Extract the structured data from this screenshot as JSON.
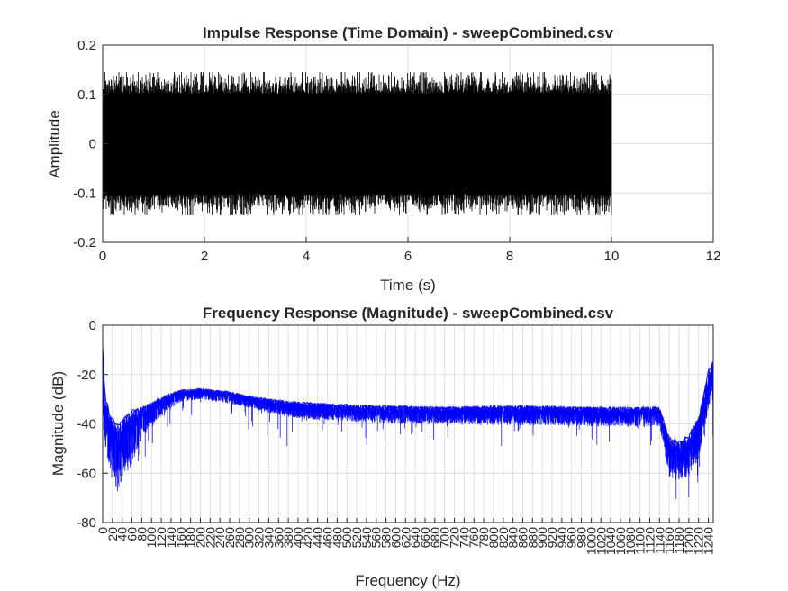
{
  "chart_data": [
    {
      "type": "line",
      "title": "Impulse Response (Time Domain) - sweepCombined.csv",
      "xlabel": "Time (s)",
      "ylabel": "Amplitude",
      "xlim": [
        0,
        12
      ],
      "ylim": [
        -0.2,
        0.2
      ],
      "xticks": [
        0,
        2,
        4,
        6,
        8,
        10,
        12
      ],
      "yticks": [
        -0.2,
        -0.1,
        0,
        0.1,
        0.2
      ],
      "xtick_labels": [
        "0",
        "2",
        "4",
        "6",
        "8",
        "10",
        "12"
      ],
      "ytick_labels": [
        "-0.2",
        "-0.1",
        "0",
        "0.1",
        "0.2"
      ],
      "grid": true,
      "series_color": "#000000",
      "signal": {
        "x_start": 0,
        "x_end": 10,
        "core_amplitude": 0.095,
        "peak_amplitude_typical": 0.12,
        "peak_amplitude_max": 0.145
      }
    },
    {
      "type": "line",
      "title": "Frequency Response (Magnitude) - sweepCombined.csv",
      "xlabel": "Frequency (Hz)",
      "ylabel": "Magnitude (dB)",
      "xlim": [
        0,
        1250
      ],
      "ylim": [
        -80,
        0
      ],
      "yticks": [
        -80,
        -60,
        -40,
        -20,
        0
      ],
      "ytick_labels": [
        "-80",
        "-60",
        "-40",
        "-20",
        "0"
      ],
      "xtick_step": 20,
      "xticks": [
        0,
        20,
        40,
        60,
        80,
        100,
        120,
        140,
        160,
        180,
        200,
        220,
        240,
        260,
        280,
        300,
        320,
        340,
        360,
        380,
        400,
        420,
        440,
        460,
        480,
        500,
        520,
        540,
        560,
        580,
        600,
        620,
        640,
        660,
        680,
        700,
        720,
        740,
        760,
        780,
        800,
        820,
        840,
        860,
        880,
        900,
        920,
        940,
        960,
        980,
        1000,
        1020,
        1040,
        1060,
        1080,
        1100,
        1120,
        1140,
        1160,
        1180,
        1200,
        1220,
        1240
      ],
      "xtick_labels": [
        "0",
        "20",
        "40",
        "60",
        "80",
        "100",
        "120",
        "140",
        "160",
        "180",
        "200",
        "220",
        "240",
        "260",
        "280",
        "300",
        "320",
        "340",
        "360",
        "380",
        "400",
        "420",
        "440",
        "460",
        "480",
        "500",
        "520",
        "540",
        "560",
        "580",
        "600",
        "620",
        "640",
        "660",
        "680",
        "700",
        "720",
        "740",
        "760",
        "780",
        "800",
        "820",
        "840",
        "860",
        "880",
        "900",
        "920",
        "940",
        "960",
        "980",
        "1000",
        "1020",
        "1040",
        "1060",
        "1080",
        "1100",
        "1120",
        "1140",
        "1160",
        "1180",
        "1200",
        "1220",
        "1240"
      ],
      "grid": true,
      "series_color": "#0000ff",
      "envelope": {
        "freq": [
          0,
          5,
          15,
          30,
          45,
          60,
          80,
          100,
          130,
          160,
          200,
          250,
          300,
          350,
          400,
          500,
          600,
          700,
          800,
          900,
          1000,
          1100,
          1140,
          1160,
          1180,
          1200,
          1220,
          1240,
          1250
        ],
        "upper_db": [
          -8,
          -28,
          -36,
          -40,
          -37,
          -34,
          -33,
          -31,
          -28,
          -26,
          -25.5,
          -26.5,
          -28.5,
          -30,
          -31,
          -32,
          -32.5,
          -33,
          -32.5,
          -32.5,
          -33,
          -33,
          -33,
          -45,
          -47,
          -44,
          -37,
          -18,
          -14
        ],
        "lower_db": [
          -40,
          -50,
          -58,
          -68,
          -62,
          -56,
          -46,
          -41,
          -35,
          -31,
          -30,
          -31.5,
          -33.5,
          -36,
          -38,
          -39,
          -40,
          -40,
          -40.5,
          -40.5,
          -41,
          -41,
          -41,
          -62,
          -63,
          -62,
          -55,
          -35,
          -32
        ]
      }
    }
  ]
}
